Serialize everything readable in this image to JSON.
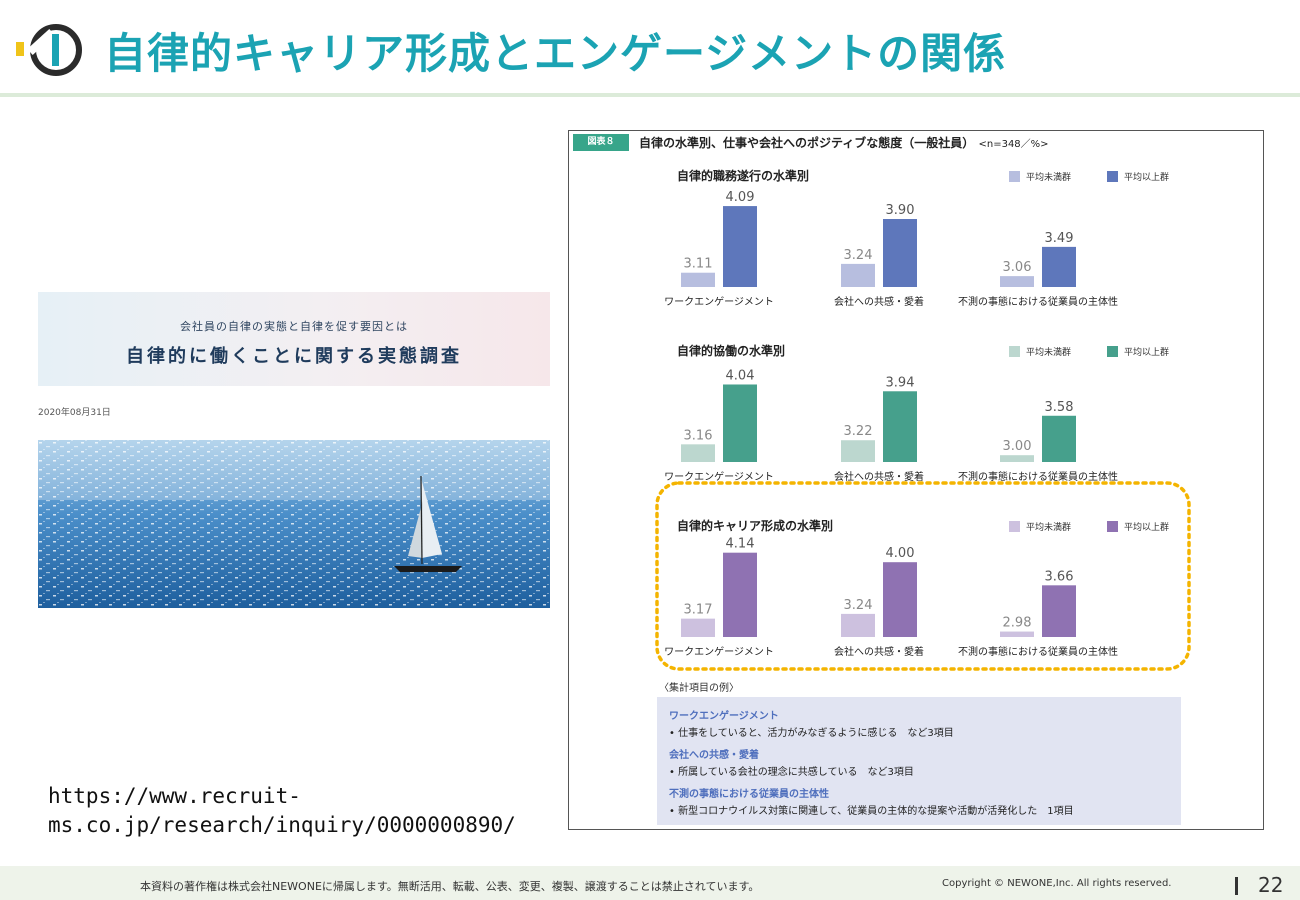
{
  "header": {
    "title": "自律的キャリア形成とエンゲージメントの関係"
  },
  "article": {
    "banner_sub": "会社員の自律の実態と自律を促す要因とは",
    "banner_title": "自律的に働くことに関する実態調査",
    "date": "2020年08月31日",
    "source_url_line1": "https://www.recruit-",
    "source_url_line2": "ms.co.jp/research/inquiry/0000000890/"
  },
  "figure": {
    "badge": "図表８",
    "title": "自律の水準別、仕事や会社へのポジティブな態度（一般社員）",
    "n_note": "<n=348／%>"
  },
  "chart_data": [
    {
      "type": "bar",
      "title": "自律的職務遂行の水準別",
      "categories": [
        "ワークエンゲージメント",
        "会社への共感・愛着",
        "不測の事態における従業員の主体性"
      ],
      "series": [
        {
          "name": "平均未満群",
          "values": [
            3.11,
            3.24,
            3.06
          ],
          "color": "#b7bedf"
        },
        {
          "name": "平均以上群",
          "values": [
            4.09,
            3.9,
            3.49
          ],
          "color": "#5e77bb"
        }
      ],
      "legend": "top-right"
    },
    {
      "type": "bar",
      "title": "自律的協働の水準別",
      "categories": [
        "ワークエンゲージメント",
        "会社への共感・愛着",
        "不測の事態における従業員の主体性"
      ],
      "series": [
        {
          "name": "平均未満群",
          "values": [
            3.16,
            3.22,
            3.0
          ],
          "color": "#bcd7cf"
        },
        {
          "name": "平均以上群",
          "values": [
            4.04,
            3.94,
            3.58
          ],
          "color": "#46a08c"
        }
      ],
      "legend": "top-right"
    },
    {
      "type": "bar",
      "title": "自律的キャリア形成の水準別",
      "categories": [
        "ワークエンゲージメント",
        "会社への共感・愛着",
        "不測の事態における従業員の主体性"
      ],
      "series": [
        {
          "name": "平均未満群",
          "values": [
            3.17,
            3.24,
            2.98
          ],
          "color": "#cdc1df"
        },
        {
          "name": "平均以上群",
          "values": [
            4.14,
            4.0,
            3.66
          ],
          "color": "#8f72b2"
        }
      ],
      "legend": "top-right"
    }
  ],
  "examples": {
    "heading": "〈集計項目の例〉",
    "items": [
      {
        "title": "ワークエンゲージメント",
        "desc": "• 仕事をしていると、活力がみなぎるように感じる　など3項目"
      },
      {
        "title": "会社への共感・愛着",
        "desc": "• 所属している会社の理念に共感している　など3項目"
      },
      {
        "title": "不測の事態における従業員の主体性",
        "desc": "• 新型コロナウイルス対策に関連して、従業員の主体的な提案や活動が活発化した　1項目"
      }
    ]
  },
  "footer": {
    "notice": "本資料の著作権は株式会社NEWONEに帰属します。無断活用、転載、公表、変更、複製、譲渡することは禁止されています。",
    "copyright": "Copyright © NEWONE,Inc.  All rights reserved.",
    "page": "22"
  }
}
